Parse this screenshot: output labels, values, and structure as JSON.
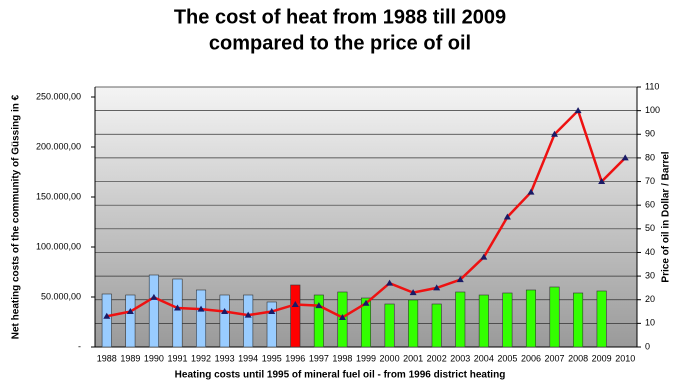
{
  "chart_data": {
    "type": "bar-line",
    "title": [
      "The cost of heat from 1988 till 2009",
      "compared to the price of oil"
    ],
    "x_label": "Heating costs until 1995 of mineral fuel oil - from 1996 district heating",
    "y_label": "Net heating costs of the community of Güssing in €",
    "y2_label": "Price of oil in Dollar / Barrel",
    "categories": [
      "1988",
      "1989",
      "1990",
      "1991",
      "1992",
      "1993",
      "1994",
      "1995",
      "1996",
      "1997",
      "1998",
      "1999",
      "2000",
      "2001",
      "2002",
      "2003",
      "2004",
      "2005",
      "2006",
      "2007",
      "2008",
      "2009",
      "2010"
    ],
    "series": [
      {
        "type": "bar",
        "values": [
          53000,
          52000,
          72000,
          68000,
          57000,
          52000,
          52000,
          45000,
          62000,
          52000,
          55000,
          49000,
          43000,
          47000,
          43000,
          55000,
          52000,
          54000,
          57000,
          60000,
          54000,
          56000,
          null
        ],
        "colors": [
          "#99ccff",
          "#99ccff",
          "#99ccff",
          "#99ccff",
          "#99ccff",
          "#99ccff",
          "#99ccff",
          "#99ccff",
          "#ff0000",
          "#33ff00",
          "#33ff00",
          "#33ff00",
          "#33ff00",
          "#33ff00",
          "#33ff00",
          "#33ff00",
          "#33ff00",
          "#33ff00",
          "#33ff00",
          "#33ff00",
          "#33ff00",
          "#33ff00",
          null
        ]
      },
      {
        "type": "line",
        "axis": "y2",
        "color": "#ee1111",
        "marker_color": "#1a1a66",
        "values": [
          13,
          15,
          21,
          16.5,
          16,
          15,
          13.5,
          15,
          18,
          17.5,
          12.5,
          18.5,
          27,
          23,
          25,
          28.5,
          38,
          55,
          65.5,
          90,
          100,
          70,
          80
        ]
      }
    ],
    "ylim": [
      0,
      260000
    ],
    "yticks": [
      {
        "value": 0,
        "label": "-"
      },
      {
        "value": 50000,
        "label": "50.000,00"
      },
      {
        "value": 100000,
        "label": "100.000,00"
      },
      {
        "value": 150000,
        "label": "150.000,00"
      },
      {
        "value": 200000,
        "label": "200.000,00"
      },
      {
        "value": 250000,
        "label": "250.000,00"
      }
    ],
    "y2lim": [
      0,
      110
    ],
    "y2ticks": [
      0,
      10,
      20,
      30,
      40,
      50,
      60,
      70,
      80,
      90,
      100,
      110
    ],
    "grid": "y2"
  }
}
